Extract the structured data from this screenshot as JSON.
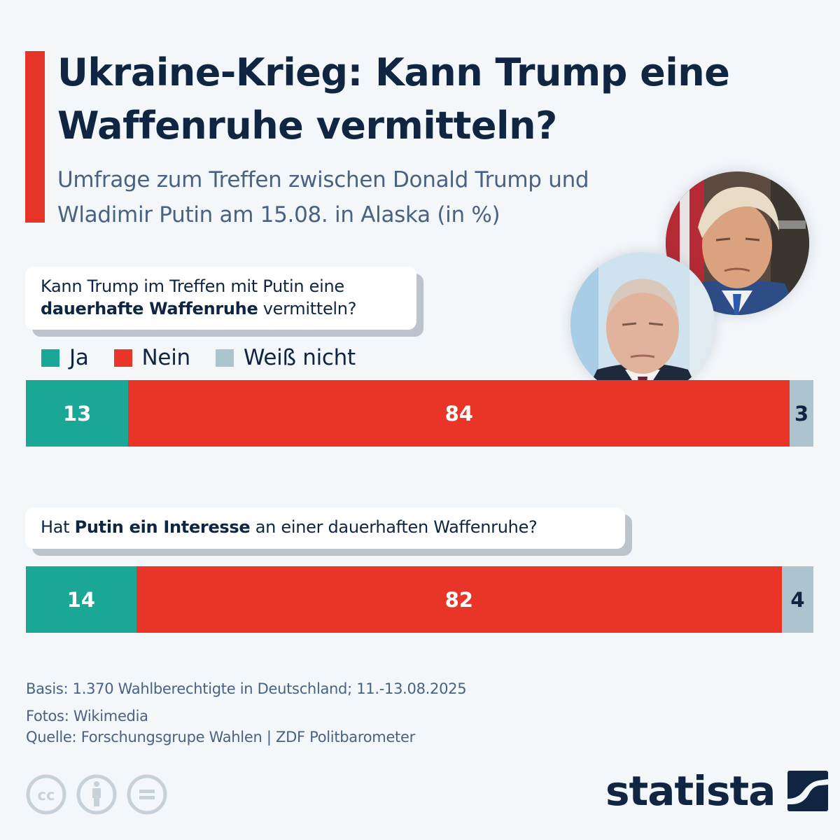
{
  "header": {
    "title": "Ukraine-Krieg: Kann Trump eine Waffenruhe vermitteln?",
    "subtitle": "Umfrage zum Treffen zwischen Donald Trump und Wladimir Putin am 15.08. in Alaska (in %)"
  },
  "photos": {
    "trump": "Donald Trump portrait",
    "putin": "Wladimir Putin portrait"
  },
  "colors": {
    "ja": "#1aa796",
    "nein": "#e93527",
    "weiss_nicht": "#adc4ce",
    "accent": "#e63528",
    "navy": "#0f2541"
  },
  "chart_data": {
    "type": "bar",
    "orientation": "horizontal-stacked",
    "title": "Ukraine-Krieg: Kann Trump eine Waffenruhe vermitteln?",
    "subtitle": "Umfrage zum Treffen zwischen Donald Trump und Wladimir Putin am 15.08. in Alaska (in %)",
    "legend": [
      "Ja",
      "Nein",
      "Weiß nicht"
    ],
    "legend_position": "top-left",
    "xlim": [
      0,
      100
    ],
    "questions": [
      {
        "pre": "Kann Trump im Treffen mit Putin eine ",
        "bold": "dauerhafte Waffenruhe",
        "post": " vermitteln?"
      },
      {
        "pre": "Hat ",
        "bold": "Putin ein Interesse",
        "post": " an einer dauerhaften Waffenruhe?"
      }
    ],
    "series": [
      {
        "name": "Ja",
        "values": [
          13,
          14
        ]
      },
      {
        "name": "Nein",
        "values": [
          84,
          82
        ]
      },
      {
        "name": "Weiß nicht",
        "values": [
          3,
          4
        ]
      }
    ]
  },
  "footer": {
    "basis": "Basis: 1.370 Wahlberechtigte in Deutschland; 11.-13.08.2025",
    "fotos": "Fotos: Wikimedia",
    "quelle": "Quelle: Forschungsgrupe Wahlen | ZDF Politbarometer"
  },
  "license_icons": [
    "cc-icon",
    "attribution-icon",
    "no-derivatives-icon"
  ],
  "brand": {
    "logo_text": "statista"
  }
}
